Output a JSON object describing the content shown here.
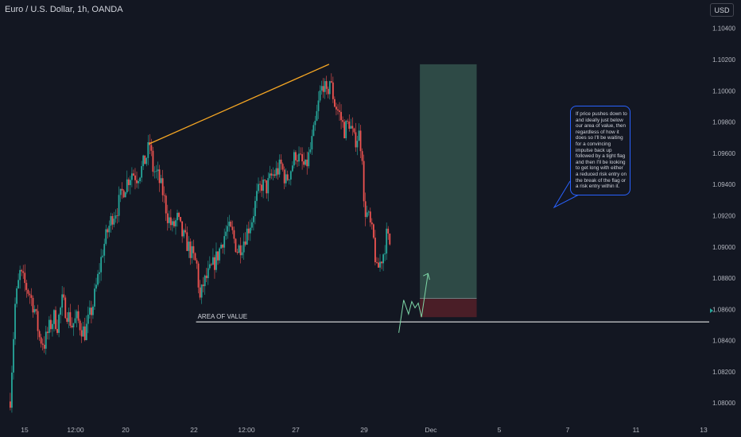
{
  "title": "Euro / U.S. Dollar, 1h, OANDA",
  "currency_button": "USD",
  "note_text": "If price pushes down to and ideally just below our area of value, then regardless of how it does so I'll be waiting for a convincing impulse back up followed by a tight flag and then I'll be looking to get long with either a reduced risk entry on the break of the flag or a risk entry within it.",
  "colors": {
    "background": "#131722",
    "up_candle": "#26a69a",
    "down_candle": "#ef5350",
    "trendline": "#f5a623",
    "target_zone": "#2e4a46",
    "stop_zone": "#4a1e27",
    "projection": "#7fd8a8",
    "note_border": "#2962ff"
  },
  "chart_data": {
    "type": "candlestick",
    "symbol": "Euro / U.S. Dollar",
    "timeframe": "1h",
    "y_range": [
      1.0793,
      1.1048
    ],
    "y_ticks": [
      "1.08000",
      "1.08200",
      "1.08400",
      "1.08600",
      "1.08800",
      "1.09000",
      "1.09200",
      "1.09400",
      "1.09600",
      "1.09800",
      "1.10000",
      "1.10200",
      "1.10400"
    ],
    "x_ticks": [
      "15",
      "12:00",
      "20",
      "22",
      "12:00",
      "27",
      "29",
      "Dec",
      "5",
      "7",
      "11",
      "13"
    ],
    "price_path": [
      [
        0,
        1.0803
      ],
      [
        3,
        1.0863
      ],
      [
        6,
        1.0883
      ],
      [
        9,
        1.0876
      ],
      [
        12,
        1.087
      ],
      [
        15,
        1.086
      ],
      [
        18,
        1.0842
      ],
      [
        21,
        1.0838
      ],
      [
        24,
        1.0848
      ],
      [
        27,
        1.0855
      ],
      [
        29,
        1.085
      ],
      [
        32,
        1.0865
      ],
      [
        35,
        1.0858
      ],
      [
        38,
        1.085
      ],
      [
        41,
        1.0854
      ],
      [
        44,
        1.0848
      ],
      [
        46,
        1.0845
      ],
      [
        48,
        1.0852
      ],
      [
        51,
        1.0863
      ],
      [
        54,
        1.088
      ],
      [
        57,
        1.0898
      ],
      [
        60,
        1.091
      ],
      [
        63,
        1.092
      ],
      [
        66,
        1.0925
      ],
      [
        69,
        1.0935
      ],
      [
        72,
        1.0942
      ],
      [
        75,
        1.0948
      ],
      [
        78,
        1.0945
      ],
      [
        81,
        1.095
      ],
      [
        84,
        1.0958
      ],
      [
        86,
        1.0966
      ],
      [
        88,
        1.095
      ],
      [
        91,
        1.0945
      ],
      [
        94,
        1.0935
      ],
      [
        97,
        1.092
      ],
      [
        100,
        1.0912
      ],
      [
        103,
        1.0918
      ],
      [
        106,
        1.0908
      ],
      [
        109,
        1.0902
      ],
      [
        112,
        1.0895
      ],
      [
        115,
        1.0888
      ],
      [
        117,
        1.0866
      ],
      [
        119,
        1.0876
      ],
      [
        122,
        1.0882
      ],
      [
        125,
        1.0888
      ],
      [
        128,
        1.0895
      ],
      [
        131,
        1.0905
      ],
      [
        134,
        1.0912
      ],
      [
        137,
        1.0908
      ],
      [
        140,
        1.0898
      ],
      [
        143,
        1.0902
      ],
      [
        146,
        1.091
      ],
      [
        149,
        1.0918
      ],
      [
        152,
        1.0932
      ],
      [
        155,
        1.094
      ],
      [
        158,
        1.0938
      ],
      [
        161,
        1.0945
      ],
      [
        164,
        1.0948
      ],
      [
        167,
        1.0952
      ],
      [
        170,
        1.0942
      ],
      [
        173,
        1.095
      ],
      [
        176,
        1.096
      ],
      [
        179,
        1.0955
      ],
      [
        182,
        1.095
      ],
      [
        185,
        1.0962
      ],
      [
        188,
        1.0978
      ],
      [
        191,
        1.0998
      ],
      [
        193,
        1.1005
      ],
      [
        195,
        1.0996
      ],
      [
        197,
        1.1007
      ],
      [
        200,
        1.0992
      ],
      [
        203,
        1.0985
      ],
      [
        206,
        1.0975
      ],
      [
        209,
        1.098
      ],
      [
        212,
        1.0968
      ],
      [
        215,
        1.0972
      ],
      [
        217,
        1.096
      ],
      [
        218,
        1.0926
      ],
      [
        221,
        1.0918
      ],
      [
        224,
        1.0904
      ],
      [
        226,
        1.0884
      ],
      [
        228,
        1.089
      ],
      [
        230,
        1.0896
      ],
      [
        232,
        1.0907
      ],
      [
        234,
        1.0902
      ]
    ],
    "trendline": {
      "from": [
        86,
        1.0966
      ],
      "to": [
        197,
        1.1017
      ],
      "color": "#f5a623"
    },
    "area_of_value": {
      "label": "AREA OF VALUE",
      "price": 1.0852,
      "from_index": 115
    },
    "long_position": {
      "from_index": 253,
      "to_index": 288,
      "entry": 1.0867,
      "target": 1.1017,
      "stop": 1.0855
    },
    "projection_path": [
      [
        240,
        1.0845
      ],
      [
        243,
        1.0866
      ],
      [
        246,
        1.0857
      ],
      [
        248,
        1.0865
      ],
      [
        250,
        1.0861
      ],
      [
        252,
        1.0864
      ],
      [
        254,
        1.0855
      ],
      [
        258,
        1.0883
      ]
    ]
  }
}
